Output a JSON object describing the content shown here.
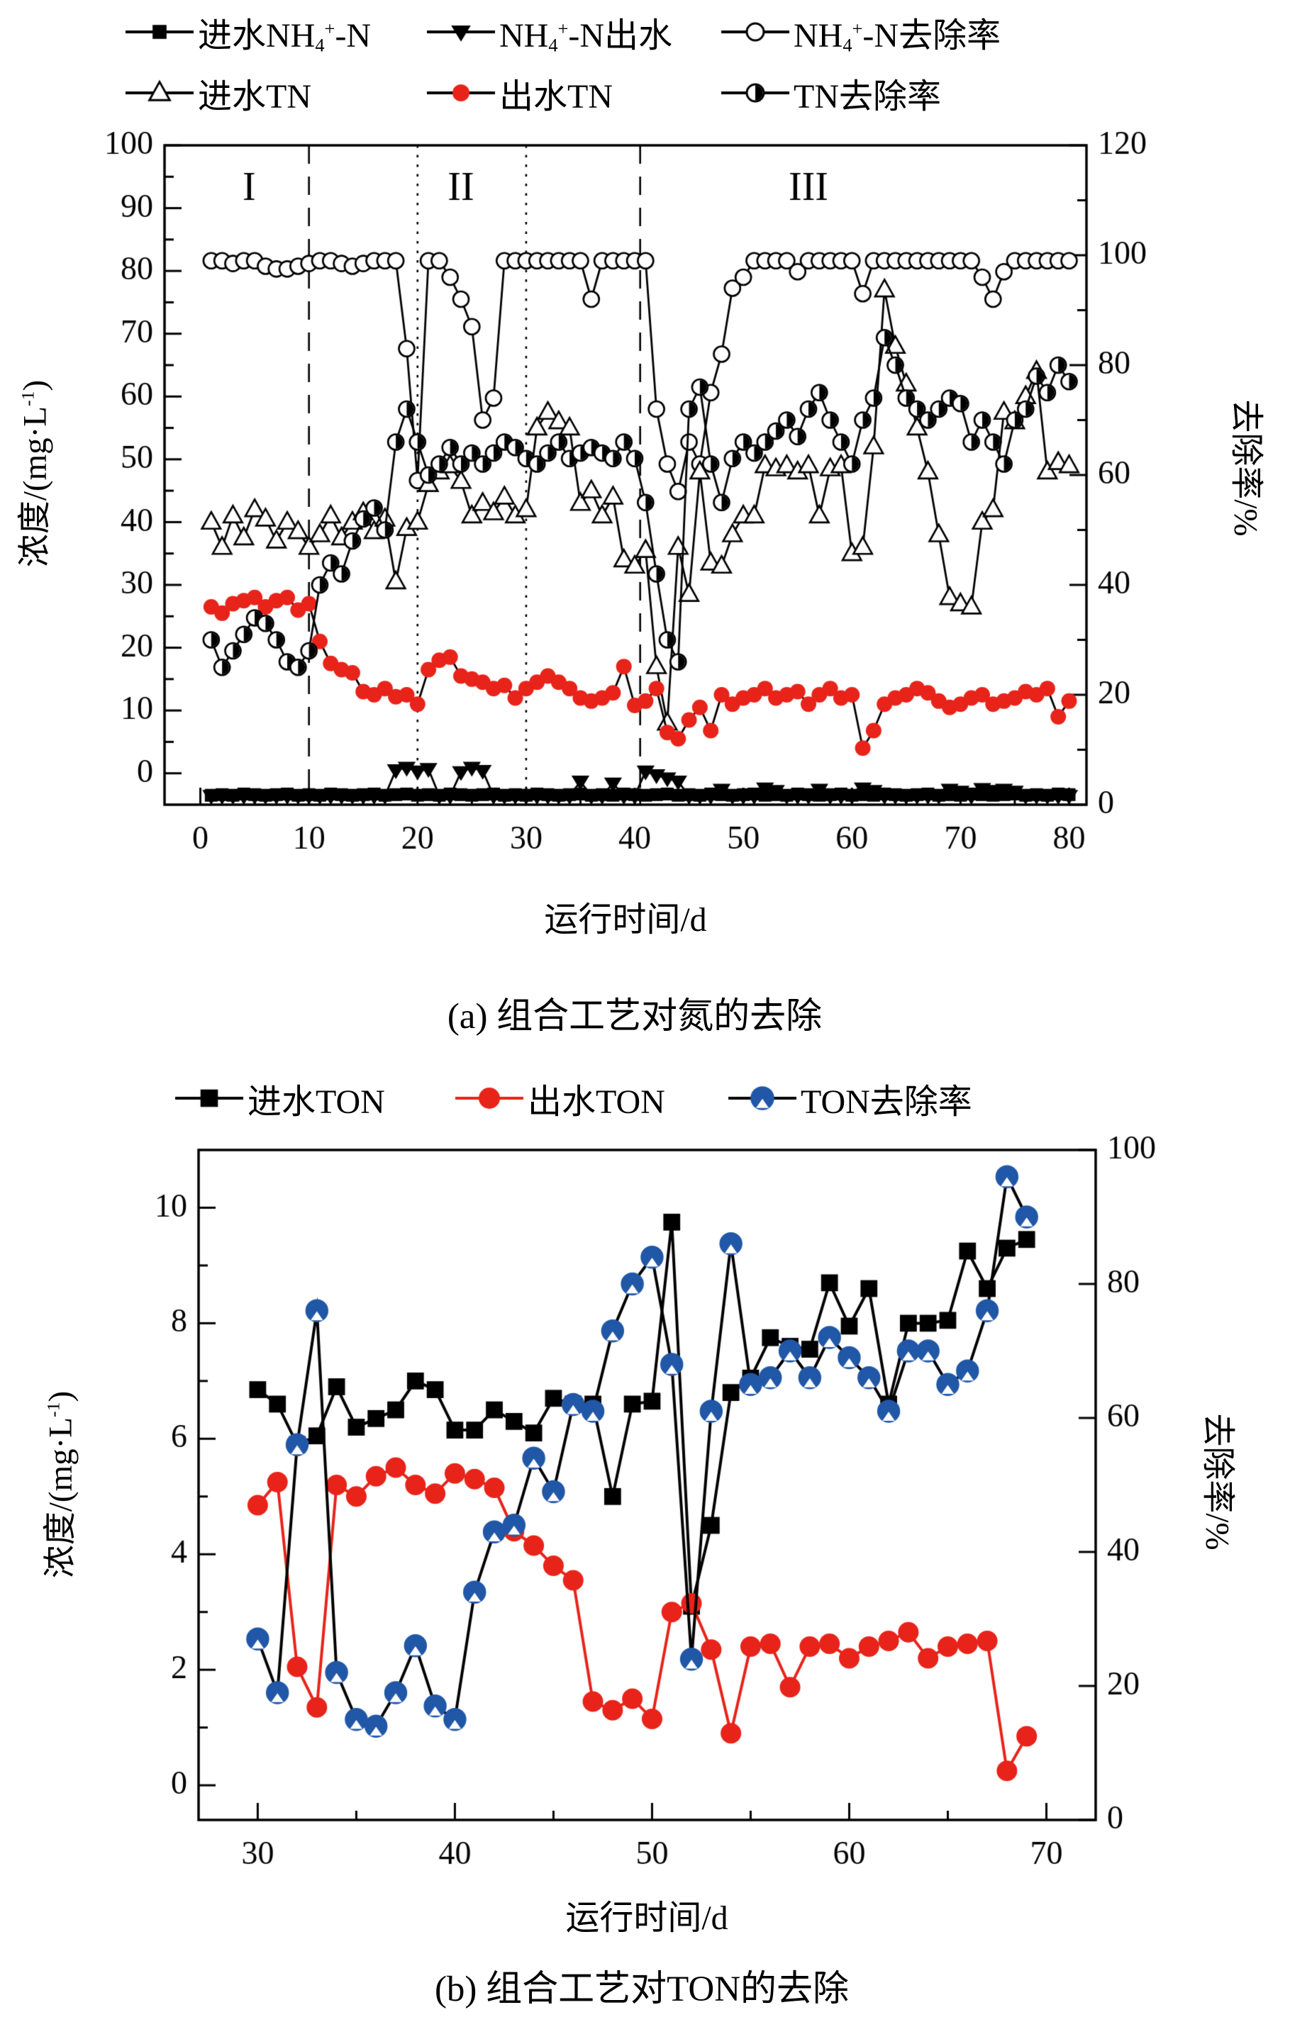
{
  "colors": {
    "black": "#000000",
    "red": "#e8231a",
    "blue": "#2157a7",
    "background": "#ffffff"
  },
  "panel_a_text": {
    "xlabel": "运行时间/d",
    "caption": "(a) 组合工艺对氮的去除",
    "ylabel_left_segments": [
      [
        "t",
        "浓度/(mg·L"
      ],
      [
        "sup",
        "-1"
      ],
      [
        "t",
        ")"
      ]
    ],
    "ylabel_right": "去除率/%"
  },
  "panel_b_text": {
    "xlabel": "运行时间/d",
    "caption": "(b) 组合工艺对TON的去除",
    "ylabel_left_segments": [
      [
        "t",
        "浓度/(mg·L"
      ],
      [
        "sup",
        "-1"
      ],
      [
        "t",
        ")"
      ]
    ],
    "ylabel_right": "去除率/%"
  },
  "legend_a": {
    "items": [
      {
        "marker": "square",
        "color": "#000000",
        "line_color": "#000000",
        "segments": [
          [
            "t",
            "进水NH"
          ],
          [
            "sub",
            "4"
          ],
          [
            "sup",
            "+"
          ],
          [
            "t",
            "-N"
          ]
        ]
      },
      {
        "marker": "tri-down",
        "color": "#000000",
        "line_color": "#000000",
        "segments": [
          [
            "t",
            "NH"
          ],
          [
            "sub",
            "4"
          ],
          [
            "sup",
            "+"
          ],
          [
            "t",
            "-N出水"
          ]
        ]
      },
      {
        "marker": "circ-open",
        "color": "#000000",
        "line_color": "#000000",
        "segments": [
          [
            "t",
            "NH"
          ],
          [
            "sub",
            "4"
          ],
          [
            "sup",
            "+"
          ],
          [
            "t",
            "-N去除率"
          ]
        ]
      },
      {
        "marker": "tri-up",
        "color": "#000000",
        "line_color": "#000000",
        "segments": [
          [
            "t",
            "进水TN"
          ]
        ]
      },
      {
        "marker": "circ-fill",
        "color": "#e8231a",
        "line_color": "#000000",
        "segments": [
          [
            "t",
            "出水TN"
          ]
        ]
      },
      {
        "marker": "circ-half",
        "color": "#000000",
        "line_color": "#000000",
        "segments": [
          [
            "t",
            "TN去除率"
          ]
        ]
      }
    ]
  },
  "legend_b": {
    "items": [
      {
        "marker": "square",
        "color": "#000000",
        "line_color": "#000000",
        "segments": [
          [
            "t",
            "进水TON"
          ]
        ]
      },
      {
        "marker": "circ-fill",
        "color": "#e8231a",
        "line_color": "#e8231a",
        "segments": [
          [
            "t",
            "出水TON"
          ]
        ]
      },
      {
        "marker": "circ-notch",
        "color": "#2157a7",
        "line_color": "#000000",
        "segments": [
          [
            "t",
            "TON去除率"
          ]
        ]
      }
    ]
  },
  "chart_data": [
    {
      "type": "scatter",
      "title": "(a) 组合工艺对氮的去除",
      "xlabel": "运行时间/d",
      "ylabel_left": "浓度/(mg·L-1)",
      "ylabel_right": "去除率/%",
      "xlim": [
        -3.3,
        81.6
      ],
      "xticks": [
        0,
        10,
        20,
        30,
        40,
        50,
        60,
        70,
        80
      ],
      "xtick_minor_step": 5,
      "ylim_left": [
        -5,
        100
      ],
      "yticks_left": [
        0,
        10,
        20,
        30,
        40,
        50,
        60,
        70,
        80,
        90,
        100
      ],
      "ytick_minor_left": 5,
      "ylim_right": [
        0,
        120
      ],
      "yticks_right": [
        0,
        20,
        40,
        60,
        80,
        100,
        120
      ],
      "ytick_minor_right": 10,
      "grid": false,
      "legend_position": "top",
      "phase_lines": [
        {
          "x": 10,
          "style": "dashed"
        },
        {
          "x": 20,
          "style": "dotted"
        },
        {
          "x": 30,
          "style": "dotted"
        },
        {
          "x": 40.5,
          "style": "dashed"
        }
      ],
      "phase_labels": [
        {
          "text": "I",
          "x": 4.5,
          "y": 93
        },
        {
          "text": "II",
          "x": 24,
          "y": 93
        },
        {
          "text": "III",
          "x": 56,
          "y": 93
        }
      ],
      "x": [
        1,
        2,
        3,
        4,
        5,
        6,
        7,
        8,
        9,
        10,
        11,
        12,
        13,
        14,
        15,
        16,
        17,
        18,
        19,
        20,
        21,
        22,
        23,
        24,
        25,
        26,
        27,
        28,
        29,
        30,
        31,
        32,
        33,
        34,
        35,
        36,
        37,
        38,
        39,
        40,
        41,
        42,
        43,
        44,
        45,
        46,
        47,
        48,
        49,
        50,
        51,
        52,
        53,
        54,
        55,
        56,
        57,
        58,
        59,
        60,
        61,
        62,
        63,
        64,
        65,
        66,
        67,
        68,
        69,
        70,
        71,
        72,
        73,
        74,
        75,
        76,
        77,
        78,
        79,
        80
      ],
      "series": [
        {
          "name": "进水NH4+-N",
          "axis": "left",
          "marker": "square",
          "color": "#000000",
          "line_color": "#000000",
          "values": [
            -3.5,
            -3.4,
            -3.5,
            -3.3,
            -3.4,
            -3.5,
            -3.4,
            -3.3,
            -3.5,
            -3.4,
            -3.5,
            -3.3,
            -3.4,
            -3.5,
            -3.4,
            -3.3,
            -3.5,
            -3.4,
            -3.3,
            -3.5,
            -3.4,
            -3.5,
            -3.3,
            -3.4,
            -3.5,
            -3.4,
            -3.3,
            -3.5,
            -3.4,
            -3.5,
            -3.3,
            -3.4,
            -3.5,
            -3.4,
            -3.3,
            -3.5,
            -3.4,
            -3.5,
            -3.3,
            -3.4,
            -3.5,
            -3.4,
            -3.3,
            -3.5,
            -3.4,
            -3.5,
            -3.3,
            -3.4,
            -3.5,
            -3.4,
            -3.3,
            -3.5,
            -3.4,
            -3.5,
            -3.3,
            -3.4,
            -3.5,
            -3.4,
            -3.3,
            -3.5,
            -3.4,
            -3.5,
            -3.3,
            -3.4,
            -3.5,
            -3.4,
            -3.3,
            -3.5,
            -3.4,
            -3.5,
            -3.3,
            -3.4,
            -3.5,
            -3.4,
            -3.3,
            -3.5,
            -3.4,
            -3.5,
            -3.3,
            -3.4
          ]
        },
        {
          "name": "NH4+-N出水",
          "axis": "left",
          "marker": "tri-down",
          "color": "#000000",
          "line_color": "#000000",
          "values": [
            -3.6,
            -3.6,
            -3.6,
            -3.6,
            -3.6,
            -3.6,
            -3.6,
            -3.6,
            -3.6,
            -3.6,
            -3.6,
            -3.6,
            -3.6,
            -3.6,
            -3.6,
            -3.6,
            -3.6,
            0.5,
            0.9,
            0.3,
            0.7,
            -3.6,
            -3.6,
            0.2,
            0.9,
            0.4,
            -3.6,
            -3.6,
            -3.6,
            -3.6,
            -3.6,
            -3.6,
            -3.6,
            -3.6,
            -1.3,
            -3.6,
            -3.6,
            -1.6,
            -3.6,
            -3.6,
            0.3,
            -0.3,
            -0.8,
            -1.3,
            -3.6,
            -3.6,
            -3.6,
            -2.6,
            -3.6,
            -3.6,
            -3.6,
            -2.4,
            -2.8,
            -3.6,
            -3.6,
            -3.6,
            -2.6,
            -3.6,
            -3.6,
            -3.6,
            -2.4,
            -2.8,
            -3.6,
            -3.6,
            -3.6,
            -3.6,
            -3.6,
            -3.6,
            -2.6,
            -2.9,
            -3.6,
            -2.5,
            -2.8,
            -2.6,
            -2.9,
            -3.6,
            -3.6,
            -3.6,
            -3.6,
            -3.6
          ]
        },
        {
          "name": "NH4+-N去除率",
          "axis": "right",
          "marker": "circ-open",
          "color": "#000000",
          "line_color": "#000000",
          "values": [
            99,
            99,
            98.5,
            99,
            99,
            98,
            97.5,
            97.5,
            98,
            98.5,
            99,
            99,
            98.5,
            98,
            98.5,
            99,
            99,
            99,
            83,
            59,
            99,
            99,
            96,
            92,
            87,
            70,
            74,
            99,
            99,
            99,
            99,
            99,
            99,
            99,
            99,
            92,
            99,
            99,
            99,
            99,
            99,
            72,
            62,
            57,
            66,
            62,
            75,
            82,
            94,
            96,
            99,
            99,
            99,
            99,
            97,
            99,
            99,
            99,
            99,
            99,
            93,
            99,
            99,
            99,
            99,
            99,
            99,
            99,
            99,
            99,
            99,
            96,
            92,
            97,
            99,
            99,
            99,
            99,
            99,
            99
          ]
        },
        {
          "name": "进水TN",
          "axis": "left",
          "marker": "tri-up",
          "color": "#000000",
          "line_color": "#000000",
          "values": [
            40,
            36,
            41,
            37.5,
            42,
            40.5,
            37,
            40,
            38.5,
            36,
            38,
            41,
            37.5,
            40,
            41.5,
            38.5,
            40.5,
            30.5,
            39,
            40,
            46,
            48,
            49,
            46.5,
            41,
            43,
            41.5,
            44,
            41,
            42,
            55,
            57.5,
            56,
            55,
            43,
            45,
            41,
            44,
            34,
            33,
            35.5,
            17,
            8,
            36,
            28.5,
            48,
            33.5,
            33,
            38,
            41,
            41,
            49,
            48.5,
            49,
            48,
            49,
            41,
            48.5,
            49,
            35,
            36,
            52,
            77,
            68,
            62,
            55,
            48,
            38,
            28,
            27,
            26.5,
            40,
            42,
            57.5,
            56,
            60,
            64,
            48,
            49.5,
            49
          ]
        },
        {
          "name": "出水TN",
          "axis": "left",
          "marker": "circ-fill",
          "color": "#e8231a",
          "line_color": "#000000",
          "values": [
            26.5,
            25.5,
            27,
            27.5,
            28,
            26.5,
            27.5,
            28,
            26,
            27,
            21,
            17.5,
            16.5,
            16,
            13,
            12.5,
            13.5,
            12.2,
            12.5,
            11,
            16.5,
            18,
            18.5,
            15.5,
            15,
            14.5,
            13.5,
            14,
            12,
            13.5,
            14.5,
            15.5,
            14.5,
            13.5,
            12,
            11.5,
            12,
            12.8,
            17,
            10.8,
            11.5,
            13.5,
            6.5,
            5.5,
            8.5,
            10.5,
            6.8,
            12.5,
            11,
            12,
            12.5,
            13.5,
            12,
            12.5,
            13,
            11,
            12.5,
            13.5,
            12,
            12.5,
            4,
            6.8,
            11,
            12,
            12.5,
            13.5,
            12.8,
            11.5,
            10.5,
            11,
            12,
            12.5,
            11,
            11.5,
            12,
            13,
            12.5,
            13.5,
            9,
            11.5
          ]
        },
        {
          "name": "TN去除率",
          "axis": "right",
          "marker": "circ-half",
          "color": "#000000",
          "line_color": "#000000",
          "values": [
            30,
            25,
            28,
            31,
            34,
            33,
            30,
            26,
            25,
            28,
            40,
            44,
            42,
            48,
            52,
            54,
            50,
            66,
            72,
            66,
            60,
            62,
            65,
            62,
            64,
            62,
            64,
            66,
            65,
            63,
            62,
            64,
            66,
            63,
            64,
            65,
            64,
            63,
            66,
            63,
            55,
            42,
            30,
            26,
            72,
            76,
            62,
            55,
            63,
            66,
            64,
            66,
            68,
            70,
            67,
            72,
            75,
            70,
            66,
            62,
            70,
            74,
            85,
            80,
            74,
            72,
            70,
            72,
            74,
            73,
            66,
            70,
            66,
            62,
            70,
            72,
            78,
            75,
            80,
            77
          ]
        }
      ]
    },
    {
      "type": "scatter",
      "title": "(b) 组合工艺对TON的去除",
      "xlabel": "运行时间/d",
      "ylabel_left": "浓度/(mg·L-1)",
      "ylabel_right": "去除率/%",
      "xlim": [
        27,
        72.5
      ],
      "xticks": [
        30,
        40,
        50,
        60,
        70
      ],
      "xtick_minor_step": 5,
      "ylim_left": [
        -0.6,
        11.0
      ],
      "yticks_left": [
        0,
        2,
        4,
        6,
        8,
        10
      ],
      "ytick_minor_left": 1,
      "ylim_right": [
        0,
        100
      ],
      "yticks_right": [
        0,
        20,
        40,
        60,
        80,
        100
      ],
      "ytick_minor_right": null,
      "grid": false,
      "legend_position": "top",
      "phase_lines": [],
      "phase_labels": [],
      "x": [
        30,
        31,
        32,
        33,
        34,
        35,
        36,
        37,
        38,
        39,
        40,
        41,
        42,
        43,
        44,
        45,
        46,
        47,
        48,
        49,
        50,
        51,
        52,
        53,
        54,
        55,
        56,
        57,
        58,
        59,
        60,
        61,
        62,
        63,
        64,
        65,
        66,
        67,
        68,
        69
      ],
      "series": [
        {
          "name": "进水TON",
          "axis": "left",
          "marker": "square",
          "color": "#000000",
          "line_color": "#000000",
          "values": [
            6.85,
            6.6,
            5.9,
            6.05,
            6.9,
            6.2,
            6.35,
            6.5,
            7.0,
            6.85,
            6.15,
            6.15,
            6.5,
            6.3,
            6.1,
            6.7,
            6.6,
            6.6,
            5.0,
            6.6,
            6.65,
            9.75,
            3.1,
            4.5,
            6.8,
            7.05,
            7.75,
            7.6,
            7.55,
            8.7,
            7.95,
            8.6,
            6.6,
            8.0,
            8.0,
            8.05,
            9.25,
            8.6,
            9.3,
            9.45
          ]
        },
        {
          "name": "出水TON",
          "axis": "left",
          "marker": "circ-fill",
          "color": "#e8231a",
          "line_color": "#e8231a",
          "values": [
            4.85,
            5.25,
            2.05,
            1.35,
            5.2,
            5.0,
            5.35,
            5.5,
            5.2,
            5.05,
            5.4,
            5.3,
            5.15,
            4.4,
            4.15,
            3.8,
            3.55,
            1.45,
            1.3,
            1.5,
            1.15,
            3.0,
            3.15,
            2.35,
            0.9,
            2.4,
            2.45,
            1.7,
            2.4,
            2.45,
            2.2,
            2.4,
            2.5,
            2.65,
            2.2,
            2.4,
            2.45,
            2.5,
            0.25,
            0.85
          ]
        },
        {
          "name": "TON去除率",
          "axis": "right",
          "marker": "circ-notch",
          "color": "#2157a7",
          "line_color": "#000000",
          "values": [
            27,
            19,
            56,
            76,
            22,
            15,
            14,
            19,
            26,
            17,
            15,
            34,
            43,
            44,
            54,
            49,
            62,
            61,
            73,
            80,
            84,
            68,
            24,
            61,
            86,
            65,
            66,
            70,
            66,
            72,
            69,
            66,
            61,
            70,
            70,
            65,
            67,
            76,
            96,
            90
          ]
        }
      ]
    }
  ]
}
